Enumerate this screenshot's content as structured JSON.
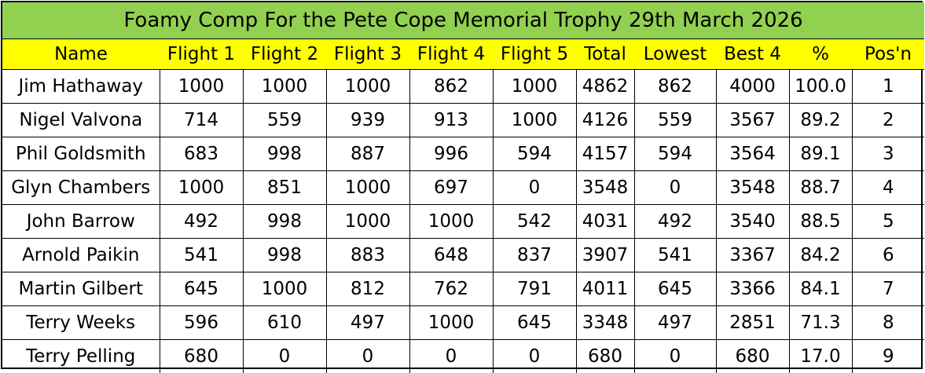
{
  "title": "Foamy Comp For the Pete Cope Memorial Trophy 29th March 2026",
  "columns": [
    "Name",
    "Flight 1",
    "Flight 2",
    "Flight 3",
    "Flight 4",
    "Flight 5",
    "Total",
    "Lowest",
    "Best 4",
    "%",
    "Pos'n"
  ],
  "rows": [
    [
      "Jim Hathaway",
      "1000",
      "1000",
      "1000",
      "862",
      "1000",
      "4862",
      "862",
      "4000",
      "100.0",
      "1"
    ],
    [
      "Nigel Valvona",
      "714",
      "559",
      "939",
      "913",
      "1000",
      "4126",
      "559",
      "3567",
      "89.2",
      "2"
    ],
    [
      "Phil Goldsmith",
      "683",
      "998",
      "887",
      "996",
      "594",
      "4157",
      "594",
      "3564",
      "89.1",
      "3"
    ],
    [
      "Glyn Chambers",
      "1000",
      "851",
      "1000",
      "697",
      "0",
      "3548",
      "0",
      "3548",
      "88.7",
      "4"
    ],
    [
      "John Barrow",
      "492",
      "998",
      "1000",
      "1000",
      "542",
      "4031",
      "492",
      "3540",
      "88.5",
      "5"
    ],
    [
      "Arnold Paikin",
      "541",
      "998",
      "883",
      "648",
      "837",
      "3907",
      "541",
      "3367",
      "84.2",
      "6"
    ],
    [
      "Martin Gilbert",
      "645",
      "1000",
      "812",
      "762",
      "791",
      "4011",
      "645",
      "3366",
      "84.1",
      "7"
    ],
    [
      "Terry Weeks",
      "596",
      "610",
      "497",
      "1000",
      "645",
      "3348",
      "497",
      "2851",
      "71.3",
      "8"
    ],
    [
      "Terry Pelling",
      "680",
      "0",
      "0",
      "0",
      "0",
      "680",
      "0",
      "680",
      "17.0",
      "9"
    ]
  ],
  "colors": {
    "title_bg": "#92d050",
    "header_bg": "#ffff00",
    "border": "#000000"
  }
}
